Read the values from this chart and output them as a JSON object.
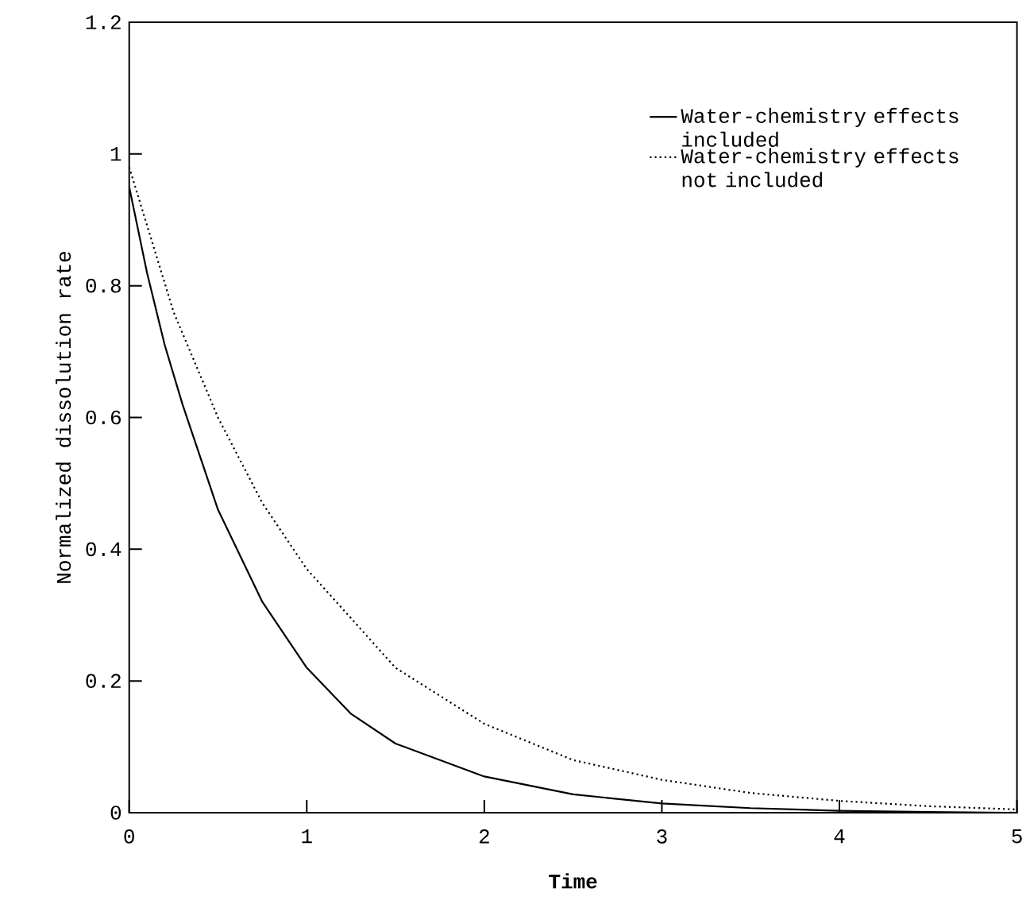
{
  "chart_data": {
    "type": "line",
    "xlabel": "Time",
    "ylabel": "Normalized dissolution rate",
    "xlim": [
      0,
      5
    ],
    "ylim": [
      0,
      1.2
    ],
    "xticks": [
      0,
      1,
      2,
      3,
      4,
      5
    ],
    "yticks": [
      0,
      0.2,
      0.4,
      0.6,
      0.8,
      1,
      1.2
    ],
    "legend": "top right",
    "marker": "none",
    "series": [
      {
        "name": "Water-chemistry effects included",
        "color": "#000000",
        "line_style": "solid",
        "x": [
          0,
          0.1,
          0.2,
          0.3,
          0.5,
          0.75,
          1,
          1.25,
          1.5,
          2,
          2.5,
          3,
          3.5,
          4,
          4.5,
          5
        ],
        "values": [
          0.95,
          0.82,
          0.71,
          0.62,
          0.46,
          0.32,
          0.22,
          0.15,
          0.105,
          0.055,
          0.028,
          0.014,
          0.007,
          0.003,
          0.001,
          0
        ]
      },
      {
        "name": "Water-chemistry effects not included",
        "color": "#000000",
        "line_style": "dotted",
        "x": [
          0,
          0.25,
          0.5,
          0.75,
          1,
          1.5,
          2,
          2.5,
          3,
          3.5,
          4,
          4.5,
          5
        ],
        "values": [
          0.98,
          0.76,
          0.6,
          0.47,
          0.37,
          0.22,
          0.135,
          0.08,
          0.05,
          0.03,
          0.018,
          0.01,
          0.005
        ]
      }
    ]
  }
}
